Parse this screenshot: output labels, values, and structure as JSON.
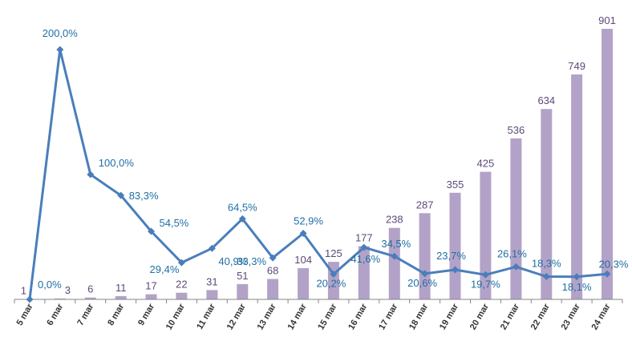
{
  "chart_data": {
    "type": "bar",
    "categories": [
      "5 mar",
      "6 mar",
      "7 mar",
      "8 mar",
      "9 mar",
      "10 mar",
      "11 mar",
      "12 mar",
      "13 mar",
      "14 mar",
      "15 mar",
      "16 mar",
      "17 mar",
      "18 mar",
      "19 mar",
      "20 mar",
      "21 mar",
      "22 mar",
      "23 mar",
      "24 mar"
    ],
    "series": [
      {
        "type": "bar",
        "values": [
          1,
          3,
          6,
          11,
          17,
          22,
          31,
          51,
          68,
          104,
          125,
          177,
          238,
          287,
          355,
          425,
          536,
          634,
          749,
          901
        ],
        "labels": [
          "1",
          "3",
          "6",
          "11",
          "17",
          "22",
          "31",
          "51",
          "68",
          "104",
          "125",
          "177",
          "238",
          "287",
          "355",
          "425",
          "536",
          "634",
          "749",
          "901"
        ],
        "color": "#b3a2c7"
      },
      {
        "type": "line",
        "values": [
          0.0,
          200.0,
          100.0,
          83.3,
          54.5,
          29.4,
          40.9,
          64.5,
          33.3,
          52.9,
          20.2,
          41.6,
          34.5,
          20.6,
          23.7,
          19.7,
          26.1,
          18.3,
          18.1,
          20.3
        ],
        "labels": [
          "0,0%",
          "200,0%",
          "100,0%",
          "83,3%",
          "54,5%",
          "29,4%",
          "40,9%",
          "64,5%",
          "33,3%",
          "52,9%",
          "20,2%",
          "41,6%",
          "34,5%",
          "20,6%",
          "23,7%",
          "19,7%",
          "26,1%",
          "18,3%",
          "18,1%",
          "20,3%"
        ],
        "color": "#4a7ebb",
        "label_color": "#1f6fa5"
      }
    ],
    "bar_ylim": [
      0,
      920
    ],
    "line_ylim": [
      0,
      202
    ],
    "title": "",
    "xlabel": "",
    "ylabel": "",
    "grid": false,
    "legend": "none"
  }
}
